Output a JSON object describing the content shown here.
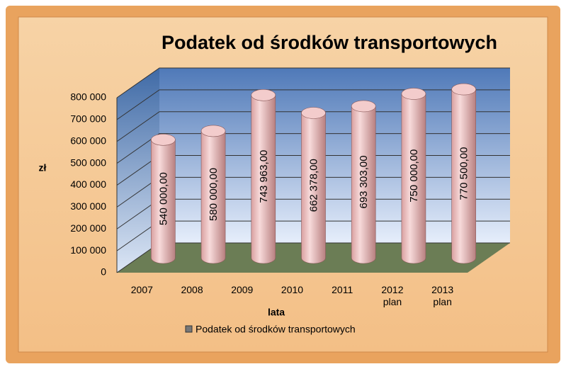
{
  "chart_data": {
    "type": "bar",
    "title": "Podatek od środków transportowych",
    "categories": [
      "2007",
      "2008",
      "2009",
      "2010",
      "2011",
      "2012\nplan",
      "2013\nplan"
    ],
    "series": [
      {
        "name": "Podatek od środków transportowych",
        "color": "#e8b4b4",
        "values": [
          540000,
          580000,
          743963,
          662378,
          693303,
          750000,
          770500
        ],
        "value_labels": [
          "540 000,00",
          "580 000,00",
          "743 963,00",
          "662 378,00",
          "693 303,00",
          "750 000,00",
          "770 500,00"
        ]
      }
    ],
    "y_label": "zł",
    "x_label": "lata",
    "ylim": [
      0,
      800000
    ],
    "yticks": [
      0,
      {
        "value": 100000,
        "label": "100 000"
      },
      {
        "value": 200000,
        "label": "200 000"
      },
      {
        "value": 300000,
        "label": "300 000"
      },
      {
        "value": 400000,
        "label": "400 000"
      },
      {
        "value": 500000,
        "label": "500 000"
      },
      {
        "value": 600000,
        "label": "600 000"
      },
      {
        "value": 700000,
        "label": "700 000"
      },
      {
        "value": 800000,
        "label": "800 000"
      }
    ],
    "grid": true,
    "legend": "bottom"
  }
}
